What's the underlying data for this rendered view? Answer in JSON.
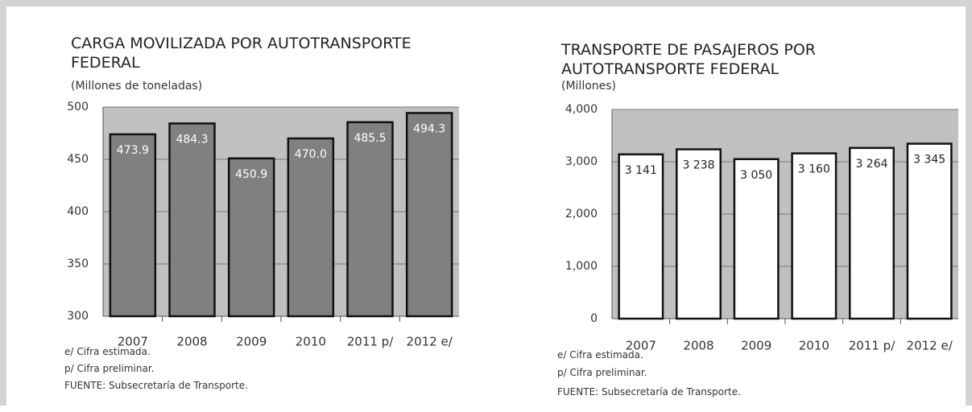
{
  "chart_data": [
    {
      "type": "bar",
      "title": "CARGA MOVILIZADA POR AUTOTRANSPORTE FEDERAL",
      "subtitle": "(Millones de toneladas)",
      "categories": [
        "2007",
        "2008",
        "2009",
        "2010",
        "2011 p/",
        "2012 e/"
      ],
      "values": [
        473.9,
        484.3,
        450.9,
        470.0,
        485.5,
        494.3
      ],
      "value_labels": [
        "473.9",
        "484.3",
        "450.9",
        "470.0",
        "485.5",
        "494.3"
      ],
      "color": "#808080",
      "label_color": "#ffffff",
      "ylim": [
        300,
        500
      ],
      "yticks": [
        300,
        350,
        400,
        450,
        500
      ],
      "grid": true,
      "notes": [
        "e/ Cifra estimada.",
        "p/ Cifra preliminar.",
        "FUENTE: Subsecretaría de Transporte."
      ]
    },
    {
      "type": "bar",
      "title": "TRANSPORTE DE PASAJEROS POR AUTOTRANSPORTE FEDERAL",
      "subtitle": "(Millones)",
      "categories": [
        "2007",
        "2008",
        "2009",
        "2010",
        "2011 p/",
        "2012 e/"
      ],
      "values": [
        3141,
        3238,
        3050,
        3160,
        3264,
        3345
      ],
      "value_labels": [
        "3 141",
        "3 238",
        "3 050",
        "3 160",
        "3 264",
        "3 345"
      ],
      "color": "#ffffff",
      "label_color": "#222222",
      "ylim": [
        0,
        4000
      ],
      "yticks": [
        0,
        {
          "value": 1000,
          "label": "1,000"
        },
        {
          "value": 2000,
          "label": "2,000"
        },
        {
          "value": 3000,
          "label": "3,000"
        },
        {
          "value": 4000,
          "label": "4,000"
        }
      ],
      "grid": true,
      "notes": [
        "e/ Cifra estimada.",
        "p/ Cifra preliminar.",
        "FUENTE: Subsecretaría de Transporte."
      ]
    }
  ]
}
